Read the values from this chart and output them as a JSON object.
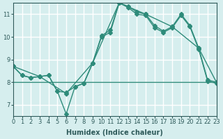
{
  "xlabel": "Humidex (Indice chaleur)",
  "bg_color": "#d6eeee",
  "grid_color": "#ffffff",
  "line_color": "#2e8b7a",
  "xlim": [
    0,
    23
  ],
  "ylim": [
    6.5,
    11.5
  ],
  "yticks": [
    7,
    8,
    9,
    10,
    11
  ],
  "xticks": [
    0,
    1,
    2,
    3,
    4,
    5,
    6,
    7,
    8,
    9,
    10,
    11,
    12,
    13,
    14,
    15,
    16,
    17,
    18,
    19,
    20,
    21,
    22,
    23
  ],
  "lines": [
    {
      "x": [
        0,
        1,
        2,
        3,
        4,
        5,
        6,
        7,
        8,
        9,
        10,
        11,
        12,
        13,
        14,
        15,
        16,
        17,
        18,
        19,
        20,
        21,
        22,
        23
      ],
      "y": [
        8.7,
        8.3,
        8.2,
        8.25,
        8.3,
        7.6,
        7.55,
        7.8,
        7.95,
        8.85,
        10.05,
        10.3,
        11.5,
        11.35,
        11.1,
        11.0,
        10.5,
        10.25,
        10.45,
        11.0,
        10.5,
        9.5,
        8.1,
        8.0
      ],
      "markers": true
    },
    {
      "x": [
        0,
        1,
        2,
        3,
        4,
        5,
        6,
        7,
        8,
        9,
        10,
        11,
        12,
        13,
        14,
        15,
        16,
        17,
        18,
        19,
        20,
        21,
        22,
        23
      ],
      "y": [
        8.7,
        8.3,
        8.2,
        8.25,
        8.3,
        7.6,
        6.6,
        7.8,
        7.95,
        8.85,
        10.0,
        10.2,
        11.5,
        11.3,
        11.0,
        10.95,
        10.4,
        10.2,
        10.4,
        10.95,
        10.45,
        9.45,
        8.05,
        7.95
      ],
      "markers": true
    },
    {
      "x": [
        0,
        3,
        6,
        9,
        12,
        15,
        18,
        21,
        23
      ],
      "y": [
        8.7,
        8.25,
        7.5,
        8.85,
        11.5,
        11.0,
        10.45,
        9.5,
        8.0
      ],
      "markers": true
    },
    {
      "x": [
        0,
        23
      ],
      "y": [
        8.0,
        8.0
      ],
      "markers": false
    }
  ]
}
